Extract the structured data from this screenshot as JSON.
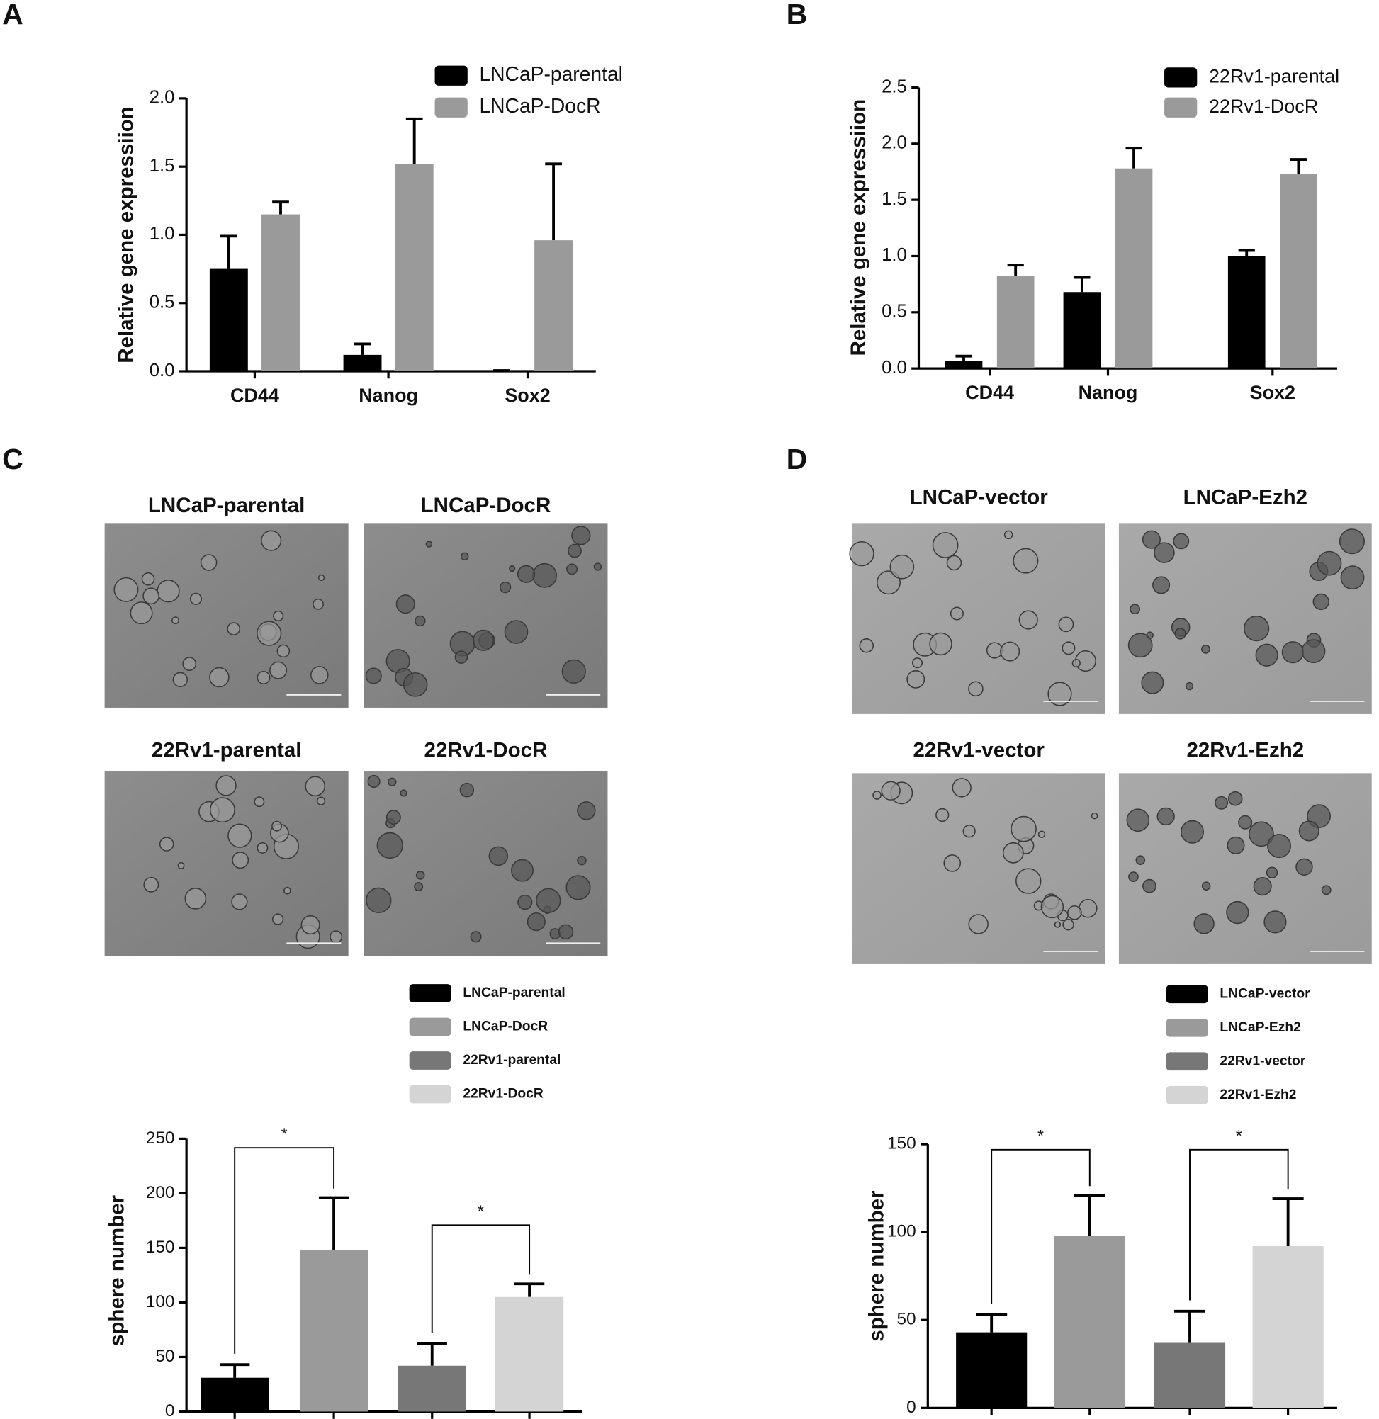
{
  "figure": {
    "panels": [
      "A",
      "B",
      "C",
      "D"
    ],
    "images": {
      "C": [
        "LNCaP-parental",
        "LNCaP-DocR",
        "22Rv1-parental",
        "22Rv1-DocR"
      ],
      "D": [
        "LNCaP-vector",
        "LNCaP-Ezh2",
        "22Rv1-vector",
        "22Rv1-Ezh2"
      ]
    }
  },
  "chart_data": [
    {
      "type": "bar",
      "y_label": "Relative gene expressiion",
      "categories": [
        "CD44",
        "Nanog",
        "Sox2"
      ],
      "ylim": [
        0,
        2
      ],
      "yticks": [
        {
          "value": 0,
          "label": "0.0"
        },
        {
          "value": 0.5,
          "label": "0.5"
        },
        {
          "value": 1,
          "label": "1.0"
        },
        {
          "value": 1.5,
          "label": "1.5"
        },
        {
          "value": 2,
          "label": "2.0"
        }
      ],
      "legend": "upper right",
      "series": [
        {
          "name": "LNCaP-parental",
          "color": "#000000",
          "values": [
            0.75,
            0.12,
            0.0
          ],
          "errors": [
            0.24,
            0.08,
            0.005
          ]
        },
        {
          "name": "LNCaP-DocR",
          "color": "#9a9a9a",
          "values": [
            1.15,
            1.52,
            0.96
          ],
          "errors": [
            0.09,
            0.33,
            0.56
          ]
        }
      ]
    },
    {
      "type": "bar",
      "y_label": "Relative gene expressiion",
      "categories": [
        "CD44",
        "Nanog",
        "Sox2"
      ],
      "ylim": [
        0,
        2.5
      ],
      "yticks": [
        {
          "value": 0,
          "label": "0.0"
        },
        {
          "value": 0.5,
          "label": "0.5"
        },
        {
          "value": 1,
          "label": "1.0"
        },
        {
          "value": 1.5,
          "label": "1.5"
        },
        {
          "value": 2,
          "label": "2.0"
        },
        {
          "value": 2.5,
          "label": "2.5"
        }
      ],
      "legend": "upper right",
      "series": [
        {
          "name": "22Rv1-parental",
          "color": "#000000",
          "values": [
            0.07,
            0.68,
            1.0
          ],
          "errors": [
            0.04,
            0.13,
            0.05
          ]
        },
        {
          "name": "22Rv1-DocR",
          "color": "#9a9a9a",
          "values": [
            0.82,
            1.78,
            1.73
          ],
          "errors": [
            0.1,
            0.18,
            0.13
          ]
        }
      ]
    },
    {
      "type": "bar",
      "y_label": "sphere number",
      "categories": [
        null
      ],
      "ylim": [
        0,
        250
      ],
      "yticks": [
        0,
        50,
        100,
        150,
        200,
        250
      ],
      "legend": "above",
      "annotations": [
        "*",
        "*"
      ],
      "series": [
        {
          "name": "LNCaP-parental",
          "color": "#000000",
          "values": [
            31
          ],
          "errors": [
            12
          ]
        },
        {
          "name": "LNCaP-DocR",
          "color": "#9a9a9a",
          "values": [
            148
          ],
          "errors": [
            48
          ]
        },
        {
          "name": "22Rv1-parental",
          "color": "#777777",
          "values": [
            42
          ],
          "errors": [
            20
          ]
        },
        {
          "name": "22Rv1-DocR",
          "color": "#d4d4d4",
          "values": [
            105
          ],
          "errors": [
            12
          ]
        }
      ]
    },
    {
      "type": "bar",
      "y_label": "sphere number",
      "categories": [
        null
      ],
      "ylim": [
        0,
        150
      ],
      "yticks": [
        0,
        50,
        100,
        150
      ],
      "legend": "above",
      "annotations": [
        "*",
        "*"
      ],
      "series": [
        {
          "name": "LNCaP-vector",
          "color": "#000000",
          "values": [
            43
          ],
          "errors": [
            10
          ]
        },
        {
          "name": "LNCaP-Ezh2",
          "color": "#9a9a9a",
          "values": [
            98
          ],
          "errors": [
            23
          ]
        },
        {
          "name": "22Rv1-vector",
          "color": "#777777",
          "values": [
            37
          ],
          "errors": [
            18
          ]
        },
        {
          "name": "22Rv1-Ezh2",
          "color": "#d4d4d4",
          "values": [
            92
          ],
          "errors": [
            27
          ]
        }
      ]
    }
  ]
}
